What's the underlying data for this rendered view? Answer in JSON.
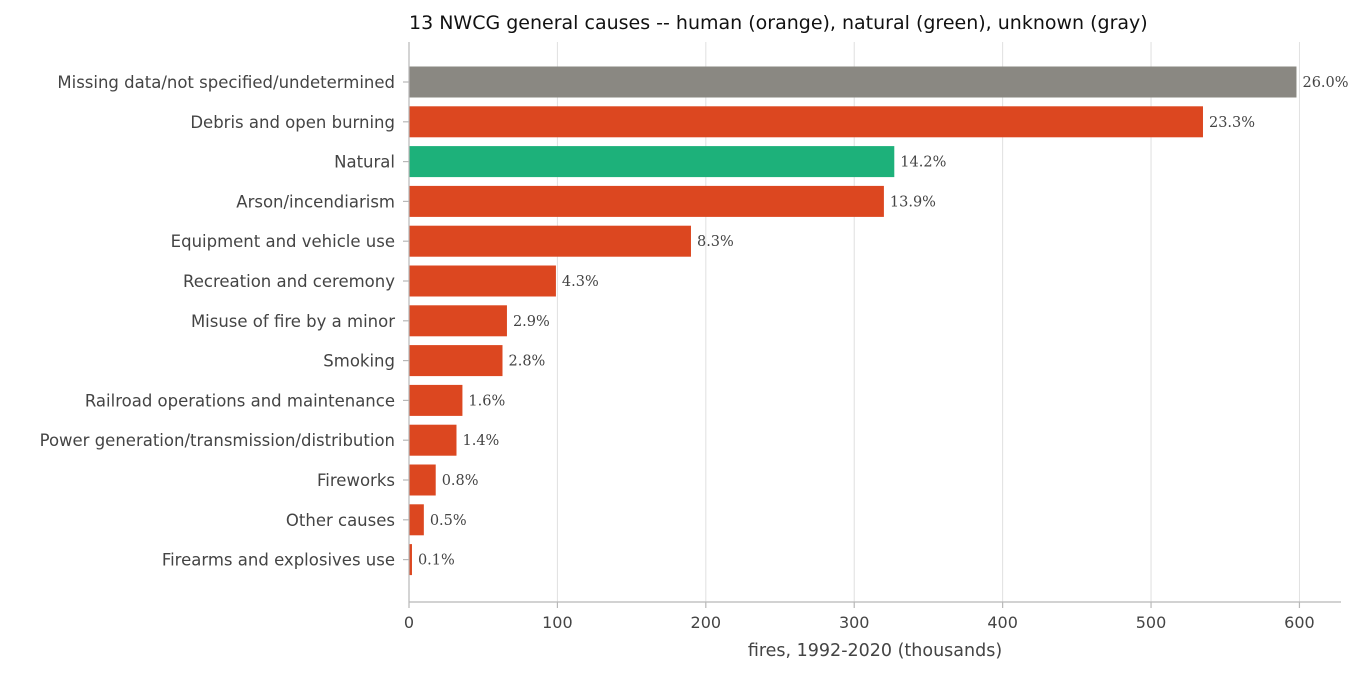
{
  "colors": {
    "human": "#dc4720",
    "natural": "#1db17a",
    "unknown": "#8a8882"
  },
  "chart_data": {
    "type": "bar",
    "orientation": "horizontal",
    "title": "13 NWCG general causes -- human (orange), natural (green), unknown (gray)",
    "xlabel": "fires, 1992-2020 (thousands)",
    "ylabel": "",
    "xlim": [
      0,
      628
    ],
    "xticks": [
      0,
      100,
      200,
      300,
      400,
      500,
      600
    ],
    "grid": "vertical",
    "categories": [
      "Missing data/not specified/undetermined",
      "Debris and open burning",
      "Natural",
      "Arson/incendiarism",
      "Equipment and vehicle use",
      "Recreation and ceremony",
      "Misuse of fire by a minor",
      "Smoking",
      "Railroad operations and maintenance",
      "Power generation/transmission/distribution",
      "Fireworks",
      "Other causes",
      "Firearms and explosives use"
    ],
    "values": [
      598,
      535,
      327,
      320,
      190,
      99,
      66,
      63,
      36,
      32,
      18,
      10,
      2
    ],
    "labels": [
      "26.0%",
      "23.3%",
      "14.2%",
      "13.9%",
      "8.3%",
      "4.3%",
      "2.9%",
      "2.8%",
      "1.6%",
      "1.4%",
      "0.8%",
      "0.5%",
      "0.1%"
    ],
    "groups": [
      "unknown",
      "human",
      "natural",
      "human",
      "human",
      "human",
      "human",
      "human",
      "human",
      "human",
      "human",
      "human",
      "human"
    ]
  }
}
